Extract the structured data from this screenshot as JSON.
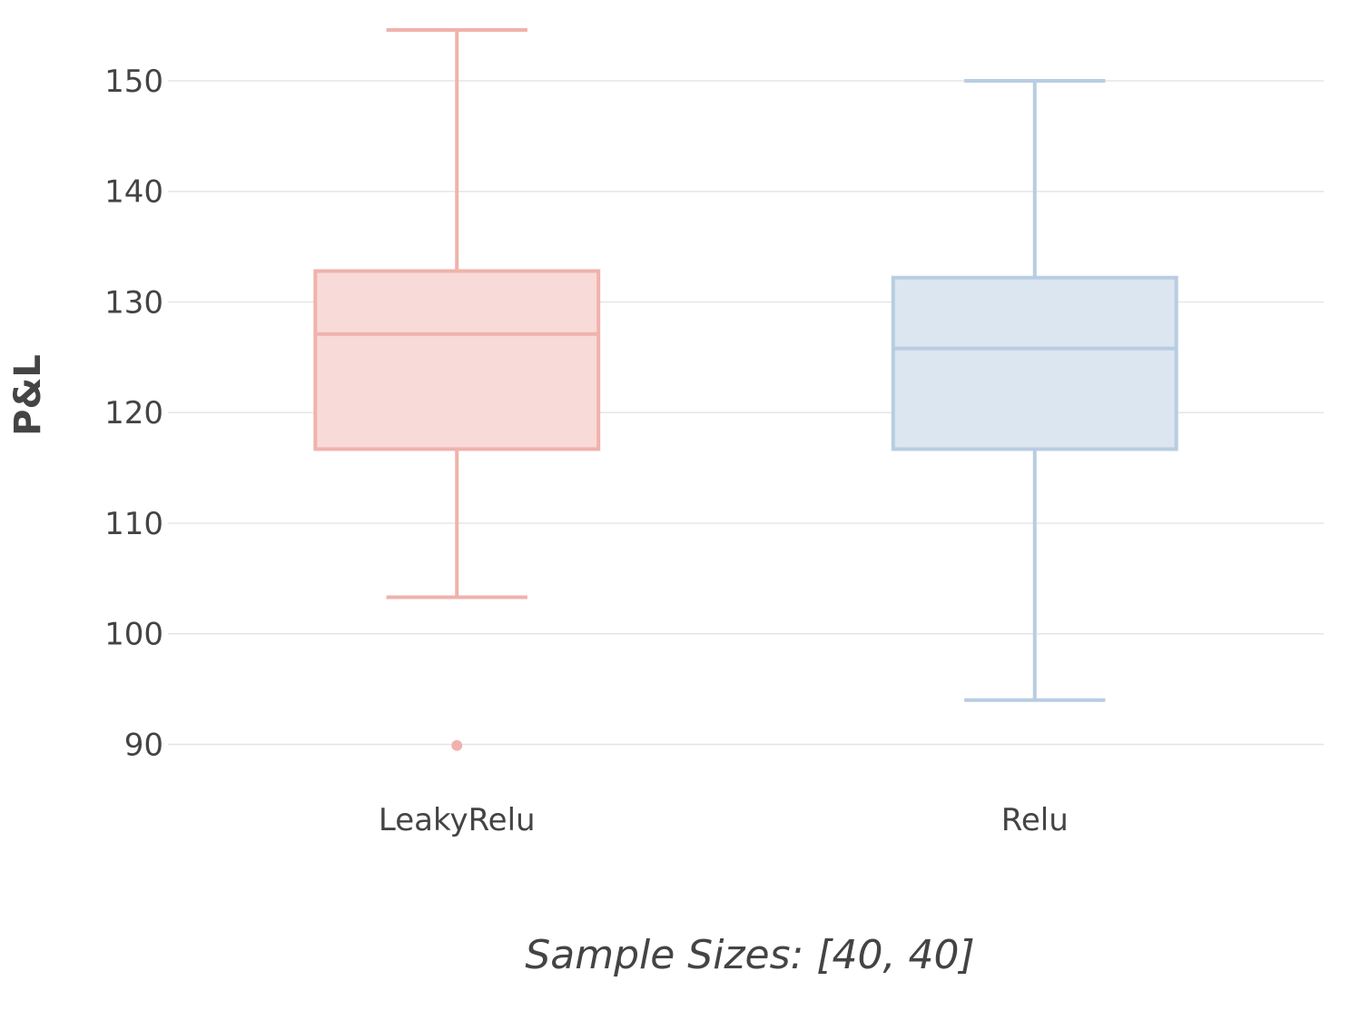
{
  "chart_data": {
    "type": "box",
    "ylabel": "P&L",
    "xlabel": "Sample Sizes: [40, 40]",
    "ylim": [
      87,
      155.5
    ],
    "yticks": [
      90,
      100,
      110,
      120,
      130,
      140,
      150
    ],
    "ytick_labels": [
      "90",
      "100",
      "110",
      "120",
      "130",
      "140",
      "150"
    ],
    "grid": true,
    "categories": [
      "LeakyRelu",
      "Relu"
    ],
    "series": [
      {
        "name": "LeakyRelu",
        "color": "#f0b2ac",
        "fill": "#f8dad8",
        "min": 103.3,
        "q1": 116.7,
        "median": 127.1,
        "q3": 132.8,
        "max": 154.6,
        "outliers": [
          89.9
        ]
      },
      {
        "name": "Relu",
        "color": "#b8cde2",
        "fill": "#dce6f0",
        "min": 94.0,
        "q1": 116.7,
        "median": 125.8,
        "q3": 132.2,
        "max": 150.0,
        "outliers": []
      }
    ]
  }
}
